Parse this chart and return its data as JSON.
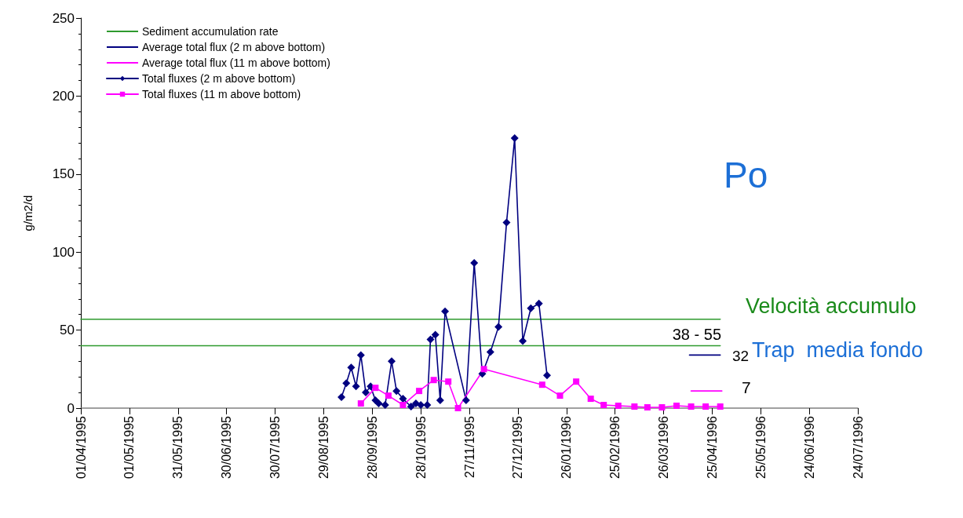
{
  "chart_data": {
    "type": "line",
    "ylabel": "g/m2/d",
    "legend": "top left",
    "grid": false,
    "xlim": [
      "1995-04-01",
      "1996-07-24"
    ],
    "xticks": [
      {
        "value": "1995-04-01",
        "label": "01/04/1995"
      },
      {
        "value": "1995-05-01",
        "label": "01/05/1995"
      },
      {
        "value": "1995-05-31",
        "label": "31/05/1995"
      },
      {
        "value": "1995-06-30",
        "label": "30/06/1995"
      },
      {
        "value": "1995-07-30",
        "label": "30/07/1995"
      },
      {
        "value": "1995-08-29",
        "label": "29/08/1995"
      },
      {
        "value": "1995-09-28",
        "label": "28/09/1995"
      },
      {
        "value": "1995-10-28",
        "label": "28/10/1995"
      },
      {
        "value": "1995-11-27",
        "label": "27/11/1995"
      },
      {
        "value": "1995-12-27",
        "label": "27/12/1995"
      },
      {
        "value": "1996-01-26",
        "label": "26/01/1996"
      },
      {
        "value": "1996-02-25",
        "label": "25/02/1996"
      },
      {
        "value": "1996-03-26",
        "label": "26/03/1996"
      },
      {
        "value": "1996-04-25",
        "label": "25/04/1996"
      },
      {
        "value": "1996-05-25",
        "label": "25/05/1996"
      },
      {
        "value": "1996-06-24",
        "label": "24/06/1996"
      },
      {
        "value": "1996-07-24",
        "label": "24/07/1996"
      }
    ],
    "ylim": [
      0,
      250
    ],
    "yticks": [
      0,
      50,
      100,
      150,
      200,
      250
    ],
    "series": [
      {
        "name": "Sediment accumulation rate",
        "color": "#2e9a2e",
        "marker": "none",
        "x": [
          "1995-04-01",
          "1996-04-30"
        ],
        "values": [
          57,
          57
        ]
      },
      {
        "color": "#2e9a2e",
        "marker": "none",
        "x": [
          "1995-04-01",
          "1996-04-30"
        ],
        "values": [
          40,
          40
        ]
      },
      {
        "name": "Average total flux (2 m above bottom)",
        "color": "#000080",
        "marker": "none",
        "x": [
          "1996-04-11",
          "1996-04-30"
        ],
        "values": [
          34,
          34
        ]
      },
      {
        "name": "Average total flux (11 m above bottom)",
        "color": "#ff00ff",
        "marker": "none",
        "x": [
          "1996-04-12",
          "1996-05-01"
        ],
        "values": [
          11,
          11
        ]
      },
      {
        "name": "Total fluxes (2 m above bottom)",
        "color": "#000080",
        "marker": "diamond",
        "x": [
          "1995-09-09",
          "1995-09-12",
          "1995-09-15",
          "1995-09-18",
          "1995-09-21",
          "1995-09-24",
          "1995-09-27",
          "1995-09-30",
          "1995-10-02",
          "1995-10-06",
          "1995-10-10",
          "1995-10-13",
          "1995-10-17",
          "1995-10-22",
          "1995-10-25",
          "1995-10-28",
          "1995-11-01",
          "1995-11-03",
          "1995-11-06",
          "1995-11-09",
          "1995-11-12",
          "1995-11-25",
          "1995-11-30",
          "1995-12-05",
          "1995-12-10",
          "1995-12-15",
          "1995-12-20",
          "1995-12-25",
          "1995-12-30",
          "1996-01-04",
          "1996-01-09",
          "1996-01-14"
        ],
        "values": [
          7,
          16,
          26,
          14,
          34,
          10,
          14,
          5,
          3,
          2,
          30,
          11,
          6,
          1,
          3,
          2,
          2,
          44,
          47,
          5,
          62,
          5,
          93,
          22,
          36,
          52,
          119,
          173,
          43,
          64,
          67,
          21
        ]
      },
      {
        "name": "Total fluxes (11 m above bottom)",
        "color": "#ff00ff",
        "marker": "square",
        "x": [
          "1995-09-21",
          "1995-09-30",
          "1995-10-08",
          "1995-10-17",
          "1995-10-27",
          "1995-11-05",
          "1995-11-14",
          "1995-11-20",
          "1995-12-06",
          "1996-01-11",
          "1996-01-22",
          "1996-02-01",
          "1996-02-10",
          "1996-02-18",
          "1996-02-27",
          "1996-03-08",
          "1996-03-16",
          "1996-03-25",
          "1996-04-03",
          "1996-04-12",
          "1996-04-21",
          "1996-04-30"
        ],
        "values": [
          3,
          13,
          8,
          2,
          11,
          18,
          17,
          0,
          25,
          15,
          8,
          17,
          6,
          2,
          1.5,
          1,
          0.5,
          0.5,
          1.5,
          1,
          1,
          1
        ]
      }
    ],
    "annotations": [
      "Po",
      "Velocità accumulo",
      "38 - 55",
      "32",
      "Trap  media fondo",
      "7"
    ]
  }
}
